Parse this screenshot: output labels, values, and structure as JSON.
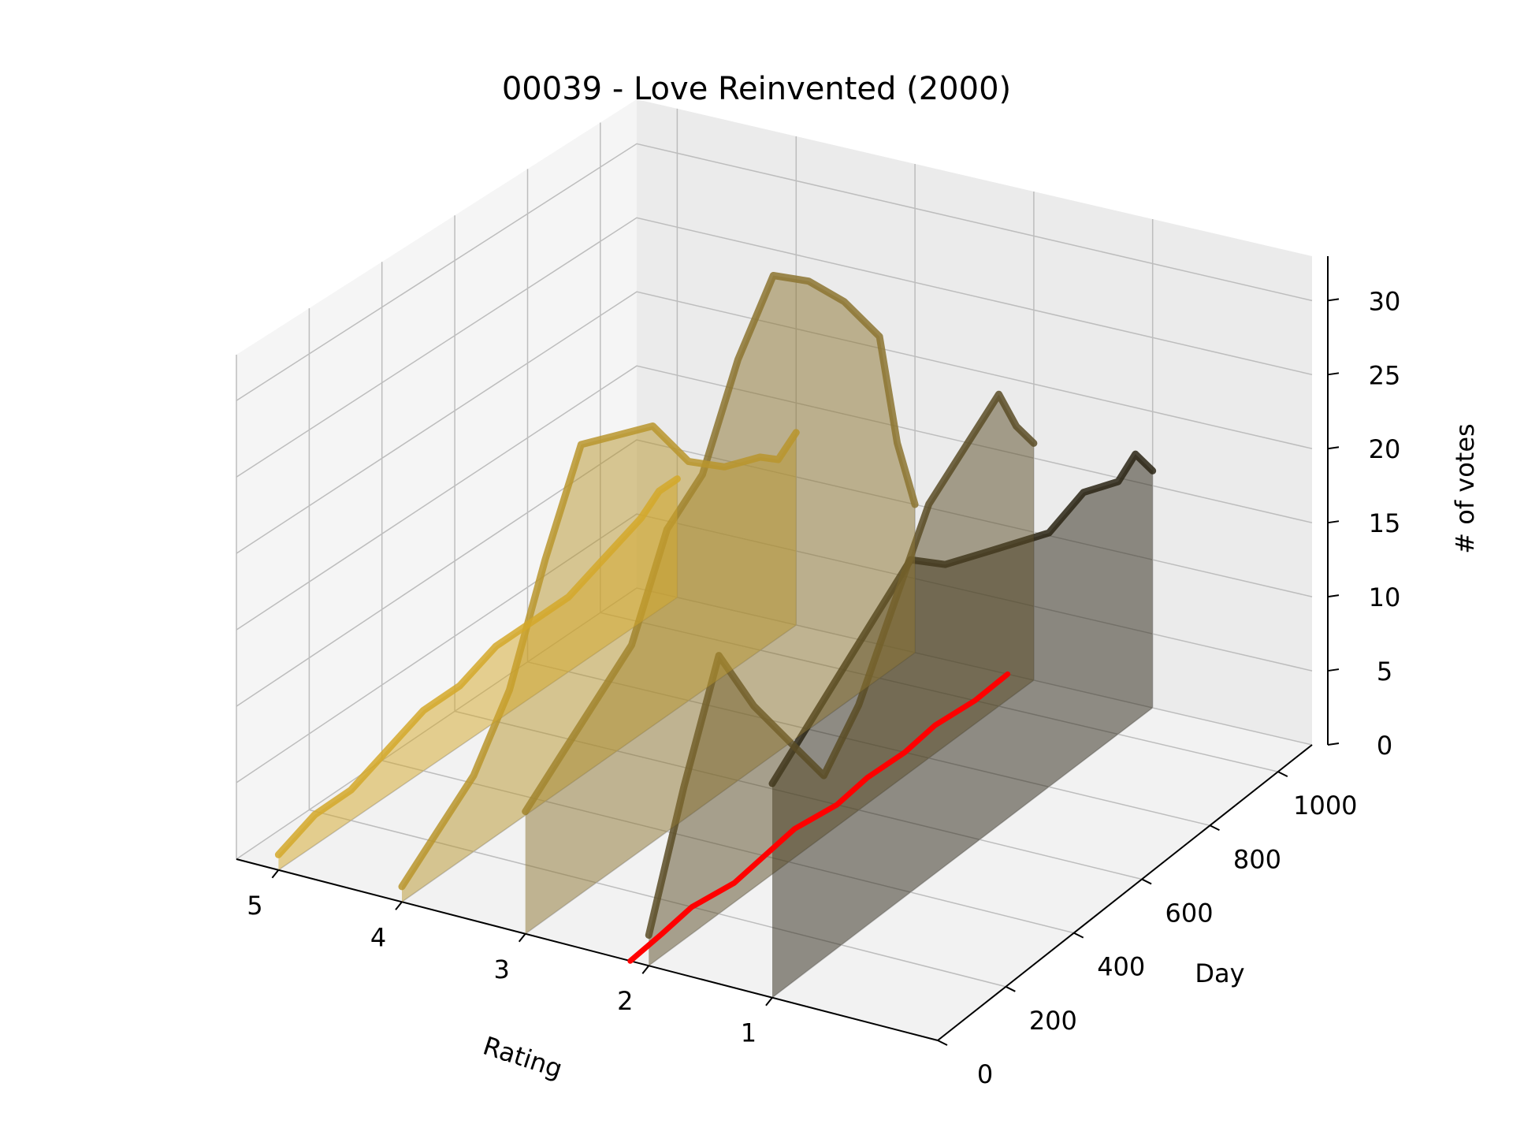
{
  "chart_data": {
    "type": "area",
    "title": "00039 - Love Reinvented (2000)",
    "xlabel": "Rating",
    "ylabel": "Day",
    "zlabel": "# of votes",
    "rating_ticks": [
      "5",
      "4",
      "3",
      "2",
      "1"
    ],
    "day_ticks": [
      "0",
      "200",
      "400",
      "600",
      "800",
      "1000"
    ],
    "votes_ticks": [
      "0",
      "5",
      "10",
      "15",
      "20",
      "25",
      "30"
    ],
    "day_range": [
      0,
      1100
    ],
    "votes_range": [
      0,
      33
    ],
    "grid": true,
    "colors": {
      "rating_5": "#d4a82a",
      "rating_4": "#b8952d",
      "rating_3": "#8c7430",
      "rating_2": "#5a4c26",
      "rating_1": "#2a2414",
      "mean_line": "#ff0000"
    },
    "series": [
      {
        "rating": 1,
        "day": [
          0,
          100,
          200,
          300,
          400,
          500,
          600,
          700,
          800,
          900,
          1000,
          1050,
          1100
        ],
        "votes": [
          14,
          16,
          18,
          20,
          22,
          20,
          19,
          18,
          17,
          18,
          17,
          18,
          16
        ]
      },
      {
        "rating": 2,
        "day": [
          0,
          100,
          200,
          300,
          400,
          500,
          600,
          700,
          800,
          900,
          1000,
          1050,
          1100
        ],
        "votes": [
          2,
          10,
          17,
          12,
          8,
          4,
          7,
          12,
          17,
          19,
          21,
          18,
          16
        ]
      },
      {
        "rating": 3,
        "day": [
          0,
          100,
          200,
          300,
          400,
          500,
          600,
          700,
          800,
          900,
          1000,
          1050,
          1100
        ],
        "votes": [
          8,
          10,
          12,
          14,
          20,
          22,
          28,
          32,
          30,
          27,
          23,
          15,
          10
        ]
      },
      {
        "rating": 4,
        "day": [
          0,
          100,
          200,
          300,
          400,
          500,
          600,
          700,
          800,
          900,
          1000,
          1050,
          1100
        ],
        "votes": [
          1,
          3,
          5,
          9,
          16,
          22,
          21,
          20,
          16,
          14,
          13,
          12,
          13
        ]
      },
      {
        "rating": 5,
        "day": [
          0,
          100,
          200,
          300,
          400,
          500,
          600,
          700,
          800,
          900,
          1000,
          1050,
          1100
        ],
        "votes": [
          1,
          2,
          2,
          3,
          4,
          4,
          5,
          5,
          5,
          6,
          7,
          8,
          8
        ]
      }
    ],
    "mean_rating": {
      "day": [
        0,
        100,
        200,
        300,
        400,
        500,
        600,
        700,
        800,
        900,
        1000,
        1100
      ],
      "value": [
        2.15,
        2.18,
        2.22,
        2.16,
        2.2,
        2.24,
        2.18,
        2.22,
        2.2,
        2.24,
        2.2,
        2.22
      ]
    }
  }
}
